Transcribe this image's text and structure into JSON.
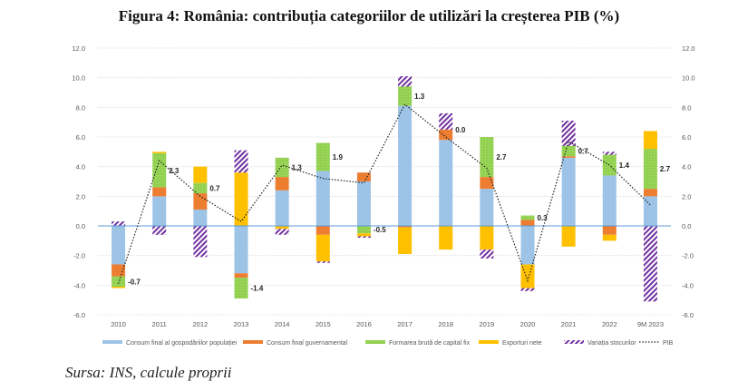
{
  "title": "Figura 4: România: contribuția categoriilor de utilizări la creșterea PIB  (%)",
  "source": "Sursa: INS, calcule proprii",
  "chart_data": {
    "type": "bar",
    "stacked": true,
    "title": "Figura 4: România: contribuția categoriilor de utilizări la creșterea PIB  (%)",
    "xlabel": "",
    "ylabel": "",
    "ylim": [
      -6,
      12
    ],
    "yticks": [
      "12.0",
      "10.0",
      "8.0",
      "6.0",
      "4.0",
      "2.0",
      "0.0",
      "-2.0",
      "-4.0",
      "-6.0"
    ],
    "ytick_values": [
      12,
      10,
      8,
      6,
      4,
      2,
      0,
      -2,
      -4,
      -6
    ],
    "secondary_axis": true,
    "grid": true,
    "legend_position": "bottom",
    "categories": [
      "2010",
      "2011",
      "2012",
      "2013",
      "2014",
      "2015",
      "2016",
      "2017",
      "2018",
      "2019",
      "2020",
      "2021",
      "2022",
      "9M 2023"
    ],
    "series": [
      {
        "name": "Consum final al gospodăriilor populației",
        "type": "bar",
        "color": "#9DC3E6",
        "values": [
          -2.6,
          2.0,
          1.1,
          -3.2,
          2.4,
          3.7,
          3.0,
          8.1,
          5.8,
          2.5,
          -2.6,
          4.6,
          3.4,
          2.0
        ]
      },
      {
        "name": "Consum final guvernamental",
        "type": "bar",
        "color": "#ED7D31",
        "values": [
          -0.8,
          0.6,
          1.1,
          -0.3,
          0.9,
          -0.6,
          0.6,
          -0.1,
          0.7,
          0.8,
          0.4,
          0.1,
          -0.6,
          0.5
        ]
      },
      {
        "name": "Formarea brută de capital fix",
        "type": "bar",
        "color": "#92D050",
        "pattern": "dotted",
        "values": [
          -0.7,
          2.3,
          0.7,
          -1.4,
          1.3,
          1.9,
          -0.5,
          1.3,
          0.0,
          2.7,
          0.3,
          0.7,
          1.4,
          2.7
        ]
      },
      {
        "name": "Exporturi nete",
        "type": "bar",
        "color": "#FFC000",
        "values": [
          -0.1,
          0.1,
          1.1,
          3.6,
          -0.2,
          -1.8,
          -0.2,
          -1.8,
          -1.6,
          -1.6,
          -1.6,
          -1.4,
          -0.4,
          1.2
        ]
      },
      {
        "name": "Variația stocurilor",
        "type": "bar",
        "color": "#7030A0",
        "pattern": "hatched",
        "values": [
          0.3,
          -0.6,
          -2.1,
          1.5,
          -0.4,
          -0.1,
          -0.1,
          0.7,
          1.1,
          -0.6,
          -0.2,
          1.7,
          0.2,
          -5.1
        ]
      },
      {
        "name": "PIB",
        "type": "line",
        "style": "dotted",
        "color": "#222222",
        "values": [
          -3.9,
          4.4,
          2.0,
          0.3,
          4.1,
          3.2,
          2.9,
          8.2,
          6.0,
          3.9,
          -3.7,
          5.7,
          4.1,
          1.4
        ]
      }
    ],
    "data_labels": {
      "series": "Formarea brută de capital fix",
      "values": [
        "-0.7",
        "2.3",
        "0.7",
        "-1.4",
        "1.3",
        "1.9",
        "-0.5",
        "1.3",
        "0.0",
        "2.7",
        "0.3",
        "0.7",
        "1.4",
        "2.7"
      ]
    },
    "legend": [
      {
        "label": "Consum final al gospodăriilor populației",
        "kind": "bar"
      },
      {
        "label": "Consum final guvernamental",
        "kind": "bar"
      },
      {
        "label": "Formarea brută de capital fix",
        "kind": "bar"
      },
      {
        "label": "Exporturi nete",
        "kind": "bar"
      },
      {
        "label": "Variația stocurilor",
        "kind": "hatched"
      },
      {
        "label": "PIB",
        "kind": "dotted-line"
      }
    ]
  }
}
